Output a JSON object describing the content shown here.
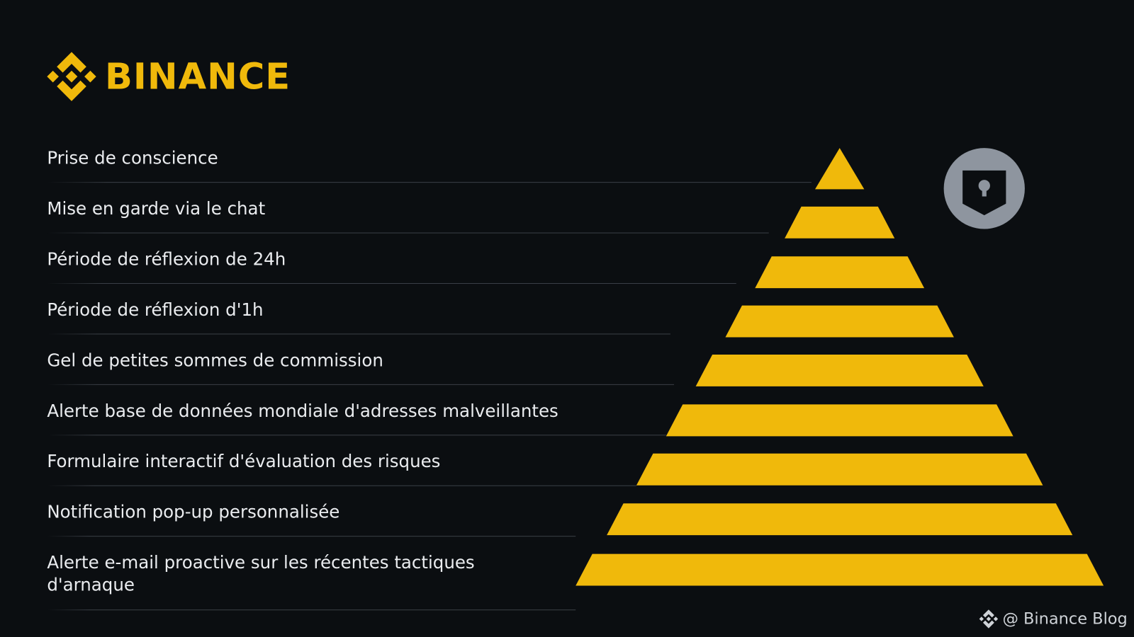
{
  "brand": {
    "name": "BINANCE",
    "color": "#F0B90B",
    "logo_icon": "binance-diamond-icon"
  },
  "colors": {
    "background": "#0B0E11",
    "pyramid": "#F0B90B",
    "text": "#EAECEF",
    "lock_badge": "#8E959F"
  },
  "levels": [
    {
      "label": "Prise de conscience"
    },
    {
      "label": "Mise en garde via le chat"
    },
    {
      "label": "Période de réflexion de 24h"
    },
    {
      "label": "Période de réflexion d'1h"
    },
    {
      "label": "Gel de petites sommes de commission"
    },
    {
      "label": "Alerte base de données mondiale d'adresses malveillantes"
    },
    {
      "label": "Formulaire interactif d'évaluation des risques"
    },
    {
      "label": "Notification pop-up personnalisée"
    },
    {
      "label": "Alerte e-mail proactive sur les récentes tactiques d'arnaque"
    }
  ],
  "badge_icon": "shield-lock-icon",
  "footer": {
    "text": "@ Binance Blog",
    "icon": "binance-diamond-icon"
  }
}
